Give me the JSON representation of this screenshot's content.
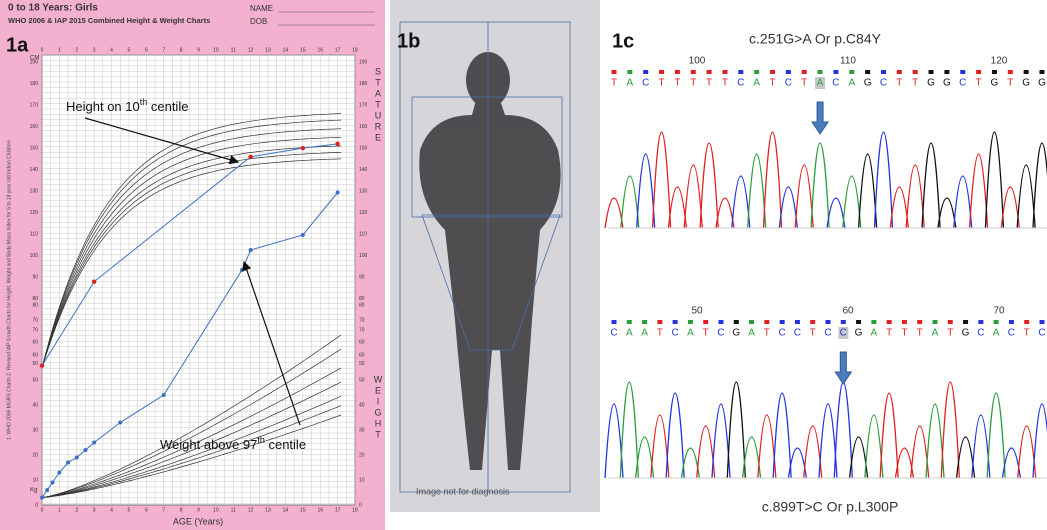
{
  "panel_a": {
    "label": "1a",
    "title": "0 to 18 Years: Girls",
    "subtitle": "WHO 2006 & IAP 2015 Combined Height & Weight Charts",
    "name_field": "NAME",
    "dob_field": "DOB",
    "height_unit": "CM",
    "weight_unit": "Kg",
    "stature_letters": [
      "S",
      "T",
      "A",
      "T",
      "U",
      "R",
      "E"
    ],
    "weight_letters": [
      "W",
      "E",
      "I",
      "G",
      "H",
      "T"
    ],
    "x_axis_label": "AGE (Years)",
    "age_ticks": [
      0,
      1,
      2,
      3,
      4,
      5,
      6,
      7,
      8,
      9,
      10,
      11,
      12,
      13,
      14,
      15,
      16,
      17,
      18
    ],
    "height_ticks": [
      50,
      60,
      70,
      80,
      90,
      100,
      110,
      120,
      130,
      140,
      150,
      160,
      170,
      180,
      190
    ],
    "weight_ticks": [
      0,
      10,
      20,
      30,
      40,
      50,
      60,
      70,
      80
    ],
    "side_note": "1. WHO 2006 MGRS Charts  2. Revised IAP Growth Charts for Height, Weight and Body Mass Index for 5 to 18 year old Indian Children",
    "annotation_height": {
      "text": "Height on 10",
      "sup": "th",
      "rest": " centile"
    },
    "annotation_weight": {
      "text": "Weight above 97",
      "sup": "th",
      "rest": " centile"
    }
  },
  "panel_b": {
    "label": "1b",
    "caption": "Image not for diagnosis"
  },
  "panel_c": {
    "label": "1c",
    "traces": [
      {
        "title": "c.251G>A  Or p.C84Y",
        "positions": [
          100,
          110,
          120
        ],
        "bases": [
          "T",
          "A",
          "C",
          "T",
          "T",
          "T",
          "T",
          "T",
          "C",
          "A",
          "T",
          "C",
          "T",
          "A",
          "C",
          "A",
          "G",
          "C",
          "T",
          "T",
          "G",
          "G",
          "C",
          "T",
          "G",
          "T",
          "G",
          "G"
        ]
      },
      {
        "title": "c.899T>C Or p.L300P",
        "positions": [
          50,
          60,
          70
        ],
        "bases": [
          "C",
          "A",
          "A",
          "T",
          "C",
          "A",
          "T",
          "C",
          "G",
          "A",
          "T",
          "C",
          "C",
          "T",
          "C",
          "C",
          "G",
          "A",
          "T",
          "T",
          "T",
          "A",
          "T",
          "G",
          "C",
          "A",
          "C",
          "T",
          "C"
        ]
      }
    ]
  }
}
